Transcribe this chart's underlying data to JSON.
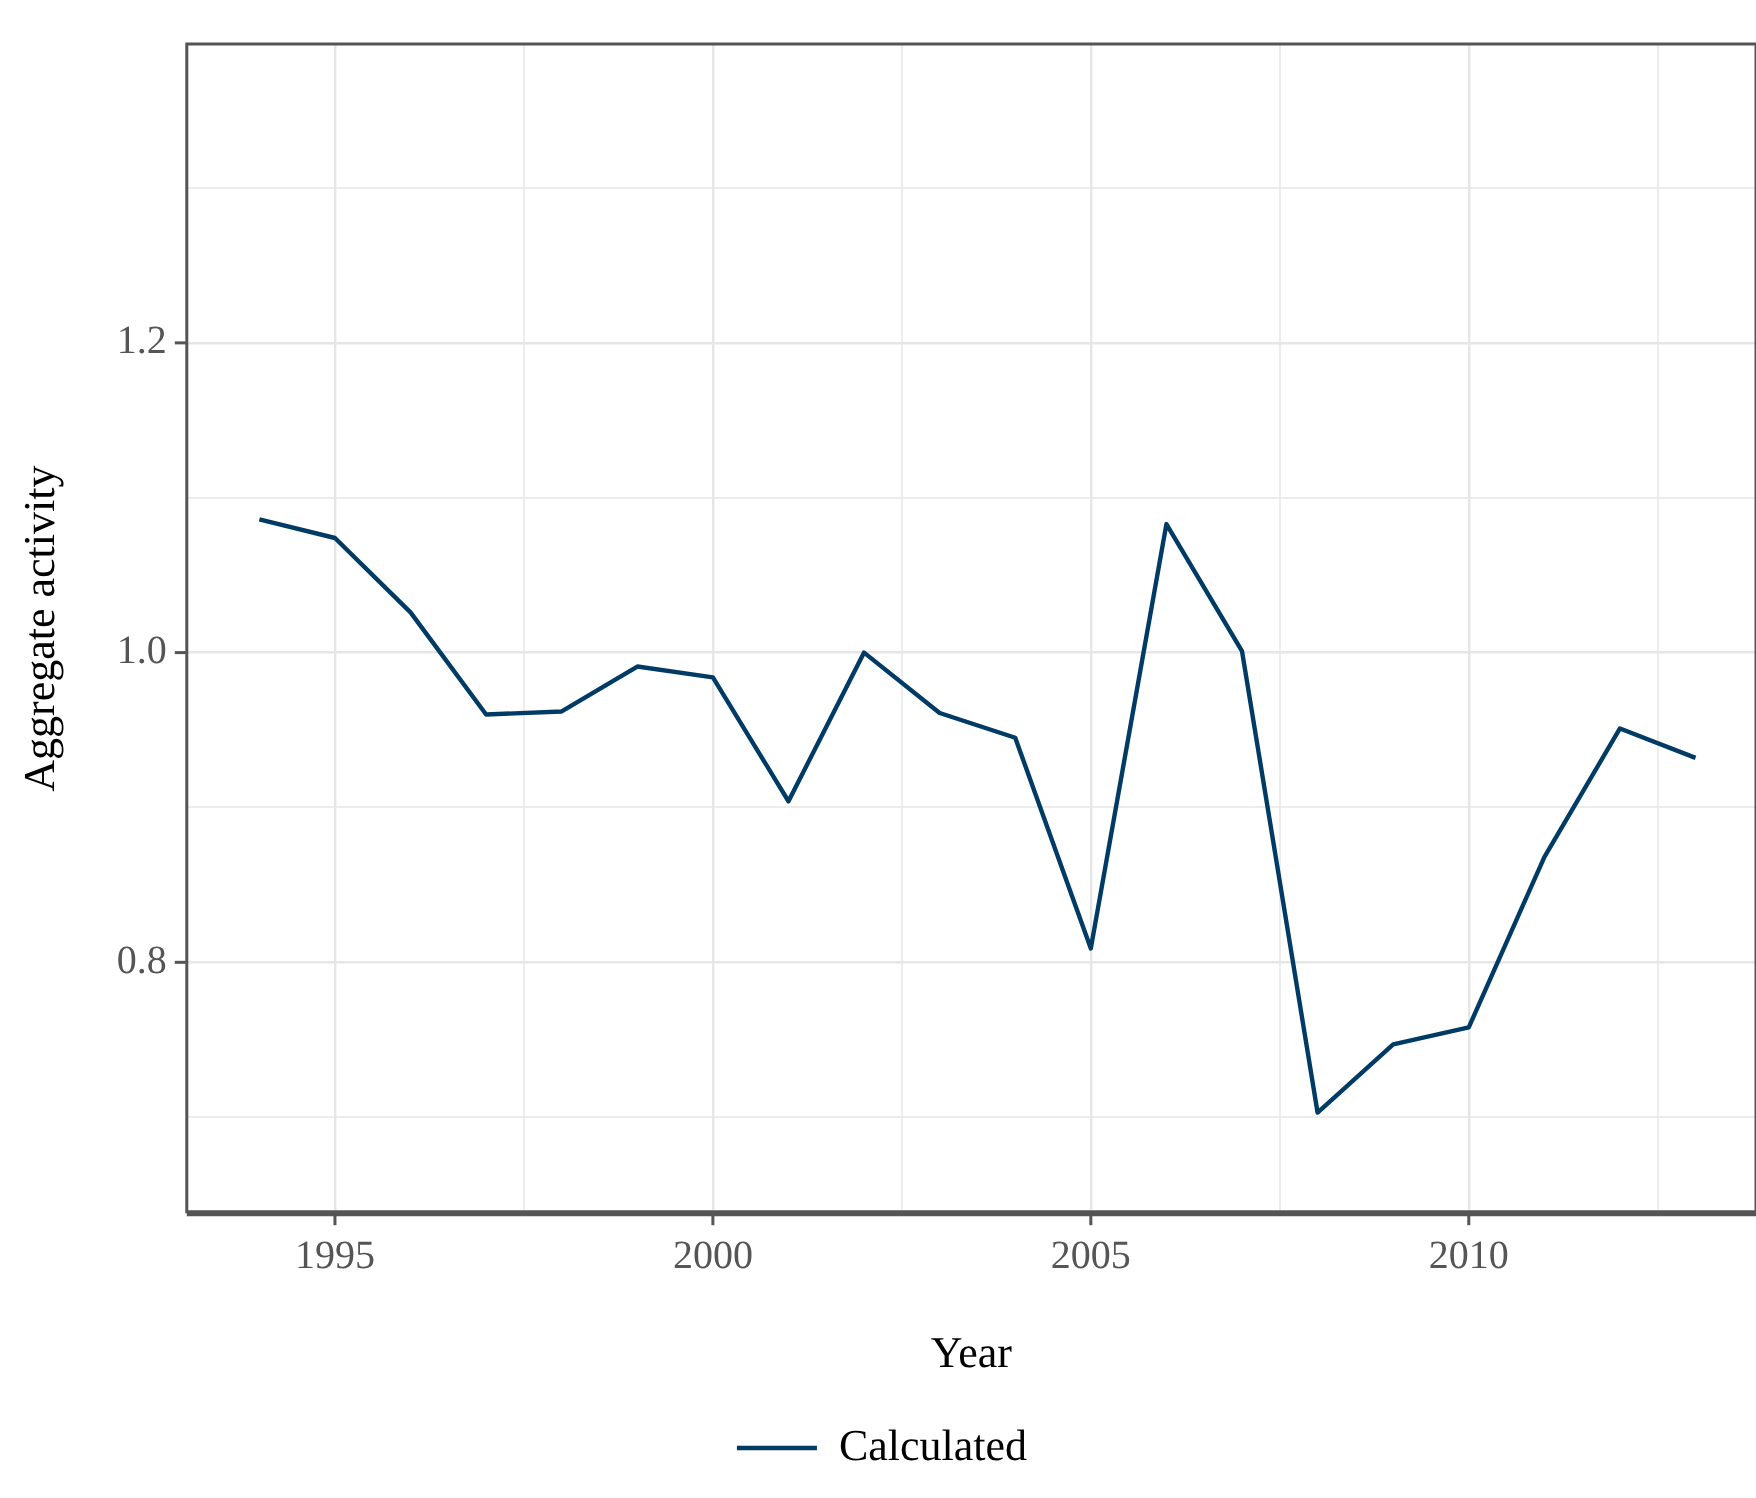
{
  "chart_data": {
    "type": "line",
    "xlabel": "Year",
    "ylabel": "Aggregate activity",
    "x": [
      1994,
      1995,
      1996,
      1997,
      1998,
      1999,
      2000,
      2001,
      2002,
      2003,
      2004,
      2005,
      2006,
      2007,
      2008,
      2009,
      2010,
      2011,
      2012,
      2013
    ],
    "series": [
      {
        "name": "Calculated",
        "color": "#003b66",
        "values": [
          1.086,
          1.074,
          1.026,
          0.96,
          0.962,
          0.991,
          0.984,
          0.904,
          1.0,
          0.961,
          0.945,
          0.809,
          1.083,
          1.001,
          0.703,
          0.747,
          0.758,
          0.868,
          0.951,
          0.932
        ]
      }
    ],
    "xlim": [
      1993.04,
      2013.8
    ],
    "xticks": [
      1995,
      {
        "value": 1997.5,
        "label": null
      },
      2000,
      {
        "value": 2002.5,
        "label": null
      },
      2005,
      {
        "value": 2007.5,
        "label": null
      },
      2010,
      {
        "value": 2012.5,
        "label": null
      }
    ],
    "ylim": [
      0.638,
      1.393
    ],
    "yticks": [
      {
        "value": 0.7,
        "label": null
      },
      {
        "value": 0.8,
        "label": "0.8"
      },
      {
        "value": 0.9,
        "label": null
      },
      {
        "value": 1.0,
        "label": "1.0"
      },
      {
        "value": 1.1,
        "label": null
      },
      {
        "value": 1.2,
        "label": "1.2"
      },
      {
        "value": 1.3,
        "label": null
      }
    ],
    "grid": true,
    "legend": "bottom",
    "marker": "none",
    "line_style": "solid"
  }
}
